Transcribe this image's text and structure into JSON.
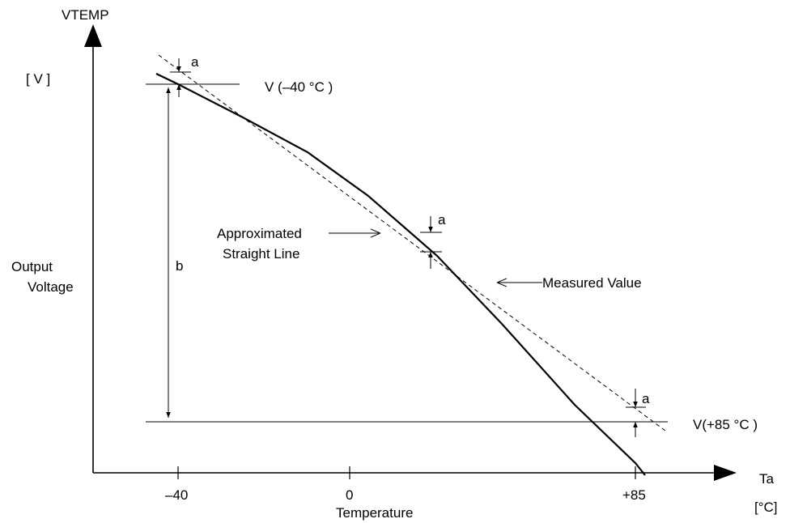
{
  "diagram": {
    "y_axis_title": "VTEMP",
    "y_axis_unit": "[ V ]",
    "y_axis_label_line1": "Output",
    "y_axis_label_line2": "Voltage",
    "x_axis_title": "Ta",
    "x_axis_unit": "[°C]",
    "x_axis_label": "Temperature",
    "x_ticks": [
      "–40",
      "0",
      "+85"
    ],
    "v_minus40_label": "V (–40 °C )",
    "v_plus85_label": "V(+85 °C )",
    "dim_a_label": "a",
    "dim_b_label": "b",
    "approx_line_label_line1": "Approximated",
    "approx_line_label_line2": "Straight Line",
    "measured_label": "Measured Value"
  }
}
